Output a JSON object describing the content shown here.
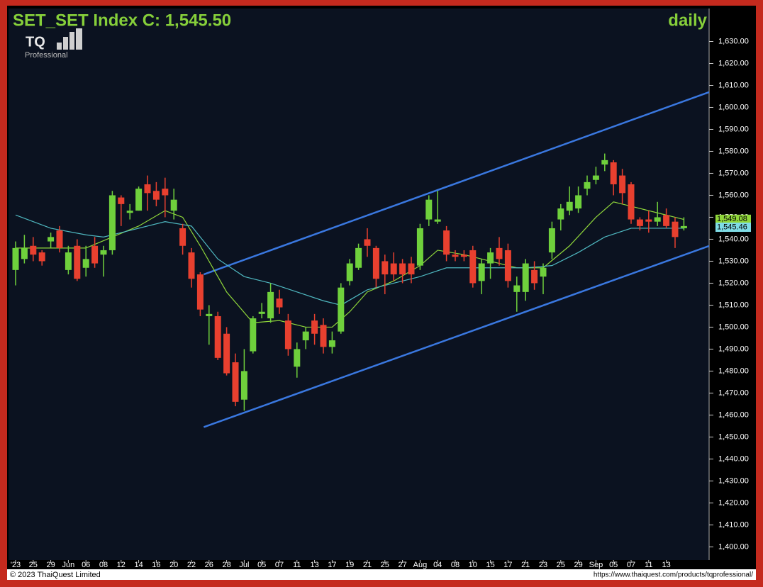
{
  "chart_data": {
    "type": "candlestick",
    "title": "SET_SET Index C: 1,545.50",
    "period": "daily",
    "logo": {
      "text": "TQ",
      "subtitle": "Professional"
    },
    "footer": {
      "left": "© 2023 ThaiQuest Limited",
      "right": "https://www.thaiquest.com/products/tqprofessional/"
    },
    "categories": [
      "'23",
      null,
      "25",
      null,
      "29",
      null,
      "Jun",
      null,
      "06",
      null,
      "08",
      null,
      "12",
      null,
      "14",
      null,
      "16",
      null,
      "20",
      null,
      "22",
      null,
      "26",
      null,
      "28",
      null,
      "Jul",
      null,
      "05",
      null,
      "07",
      null,
      "11",
      null,
      "13",
      null,
      "17",
      null,
      "19",
      null,
      "21",
      null,
      "25",
      null,
      "27",
      null,
      "Aug",
      null,
      "04",
      null,
      "08",
      null,
      "10",
      null,
      "15",
      null,
      "17",
      null,
      "21",
      null,
      "23",
      null,
      "25",
      null,
      "29",
      null,
      "Sep",
      null,
      "05",
      null,
      "07",
      null,
      "11",
      null,
      "13",
      null,
      null
    ],
    "open": [
      1526,
      1531,
      1537,
      1534,
      1539,
      1544,
      1526,
      1537,
      1527,
      1537,
      1533,
      1535,
      1559,
      1552,
      1553,
      1565,
      1562,
      1563,
      1553,
      1545,
      1534,
      1524,
      1505,
      1505,
      1497,
      1484,
      1467,
      1489,
      1506,
      1504,
      1513,
      1503,
      1482,
      1494,
      1503,
      1501,
      1491,
      1498,
      1521,
      1527,
      1540,
      1536,
      1530,
      1529,
      1529,
      1529,
      1528,
      1549,
      1548,
      1544,
      1533,
      1533,
      1535,
      1521,
      1529,
      1536,
      1535,
      1516,
      1516,
      1526,
      1523,
      1534,
      1549,
      1553,
      1554,
      1563,
      1567,
      1574,
      1575,
      1569,
      1565,
      1549,
      1549,
      1548,
      1551,
      1548,
      1545
    ],
    "high": [
      1539,
      1542,
      1541,
      1535,
      1543,
      1546,
      1537,
      1540,
      1537,
      1541,
      1537,
      1562,
      1560,
      1556,
      1564,
      1569,
      1566,
      1568,
      1563,
      1547,
      1536,
      1525,
      1510,
      1507,
      1500,
      1488,
      1490,
      1505,
      1511,
      1520,
      1517,
      1506,
      1493,
      1500,
      1506,
      1504,
      1498,
      1520,
      1531,
      1538,
      1545,
      1537,
      1533,
      1534,
      1531,
      1532,
      1547,
      1560,
      1562,
      1546,
      1535,
      1535,
      1537,
      1531,
      1536,
      1541,
      1538,
      1523,
      1531,
      1530,
      1529,
      1548,
      1556,
      1564,
      1564,
      1569,
      1573,
      1579,
      1576,
      1572,
      1566,
      1550,
      1553,
      1557,
      1554,
      1550,
      1550
    ],
    "low": [
      1519,
      1529,
      1530,
      1528,
      1536,
      1534,
      1524,
      1521,
      1523,
      1527,
      1523,
      1533,
      1546,
      1549,
      1553,
      1553,
      1555,
      1550,
      1549,
      1533,
      1518,
      1505,
      1492,
      1485,
      1478,
      1464,
      1462,
      1488,
      1504,
      1502,
      1506,
      1487,
      1477,
      1490,
      1492,
      1488,
      1488,
      1497,
      1519,
      1526,
      1532,
      1518,
      1515,
      1521,
      1520,
      1520,
      1526,
      1546,
      1547,
      1530,
      1530,
      1530,
      1518,
      1515,
      1522,
      1528,
      1518,
      1507,
      1512,
      1517,
      1515,
      1531,
      1544,
      1551,
      1552,
      1560,
      1565,
      1571,
      1560,
      1556,
      1547,
      1544,
      1543,
      1546,
      1545,
      1536,
      1544
    ],
    "close": [
      1536,
      1536,
      1533,
      1530,
      1541,
      1536,
      1534,
      1522,
      1531,
      1529,
      1535,
      1560,
      1556,
      1553,
      1563,
      1561,
      1558,
      1560,
      1558,
      1537,
      1522,
      1508,
      1506,
      1486,
      1479,
      1466,
      1480,
      1504,
      1507,
      1516,
      1509,
      1490,
      1490,
      1498,
      1497,
      1491,
      1494,
      1518,
      1529,
      1536,
      1537,
      1522,
      1524,
      1524,
      1524,
      1524,
      1545,
      1558,
      1549,
      1533,
      1532,
      1532,
      1520,
      1529,
      1534,
      1531,
      1521,
      1519,
      1529,
      1520,
      1527,
      1545,
      1554,
      1557,
      1560,
      1566,
      1569,
      1576,
      1565,
      1561,
      1549,
      1546,
      1548,
      1550,
      1546,
      1541,
      1546
    ],
    "up_color": "#6fd03c",
    "down_color": "#e8402f",
    "overlays": [
      {
        "color": "#8fd63a",
        "x": [
          0,
          4,
          8,
          11,
          14,
          17,
          19,
          21,
          24,
          27,
          30,
          33,
          36,
          38,
          40,
          43,
          46,
          48,
          51,
          54,
          57,
          60,
          63,
          66,
          68,
          70,
          73,
          76
        ],
        "values": [
          1536,
          1536,
          1536,
          1541,
          1546,
          1553,
          1550,
          1537,
          1516,
          1502,
          1503,
          1500,
          1500,
          1507,
          1516,
          1521,
          1528,
          1535,
          1533,
          1530,
          1527,
          1527,
          1537,
          1550,
          1557,
          1555,
          1552,
          1549
        ]
      },
      {
        "color": "#4fb8c0",
        "x": [
          0,
          4,
          8,
          10,
          13,
          17,
          20,
          23,
          26,
          29,
          32,
          35,
          37,
          40,
          43,
          46,
          49,
          52,
          55,
          58,
          61,
          64,
          67,
          70,
          73,
          76
        ],
        "values": [
          1551,
          1545,
          1542,
          1541,
          1544,
          1548,
          1546,
          1531,
          1523,
          1520,
          1516,
          1512,
          1510,
          1517,
          1520,
          1523,
          1527,
          1527,
          1527,
          1527,
          1528,
          1534,
          1541,
          1545,
          1545,
          1545
        ]
      }
    ],
    "trendlines": [
      {
        "color": "#3a78e0",
        "x": [
          21.4,
          78.9
        ],
        "values": [
          1524,
          1607
        ]
      },
      {
        "color": "#3a78e0",
        "x": [
          21.4,
          78.9
        ],
        "values": [
          1454.5,
          1537
        ]
      }
    ],
    "last_labels": [
      {
        "value": 1549.08,
        "label": "1,549.08",
        "color": "#8fd63a"
      },
      {
        "value": 1545.46,
        "label": "1,545.46",
        "color": "#7fdce6"
      }
    ],
    "ylim": [
      1394,
      1645
    ],
    "yticks": [
      {
        "value": 1400,
        "label": "1,400.00"
      },
      {
        "value": 1410,
        "label": "1,410.00"
      },
      {
        "value": 1420,
        "label": "1,420.00"
      },
      {
        "value": 1430,
        "label": "1,430.00"
      },
      {
        "value": 1440,
        "label": "1,440.00"
      },
      {
        "value": 1450,
        "label": "1,450.00"
      },
      {
        "value": 1460,
        "label": "1,460.00"
      },
      {
        "value": 1470,
        "label": "1,470.00"
      },
      {
        "value": 1480,
        "label": "1,480.00"
      },
      {
        "value": 1490,
        "label": "1,490.00"
      },
      {
        "value": 1500,
        "label": "1,500.00"
      },
      {
        "value": 1510,
        "label": "1,510.00"
      },
      {
        "value": 1520,
        "label": "1,520.00"
      },
      {
        "value": 1530,
        "label": "1,530.00"
      },
      {
        "value": 1540,
        "label": "1,540.00"
      },
      {
        "value": 1550,
        "label": "1,550.00"
      },
      {
        "value": 1560,
        "label": "1,560.00"
      },
      {
        "value": 1570,
        "label": "1,570.00"
      },
      {
        "value": 1580,
        "label": "1,580.00"
      },
      {
        "value": 1590,
        "label": "1,590.00"
      },
      {
        "value": 1600,
        "label": "1,600.00"
      },
      {
        "value": 1610,
        "label": "1,610.00"
      },
      {
        "value": 1620,
        "label": "1,620.00"
      },
      {
        "value": 1630,
        "label": "1,630.00"
      }
    ]
  }
}
